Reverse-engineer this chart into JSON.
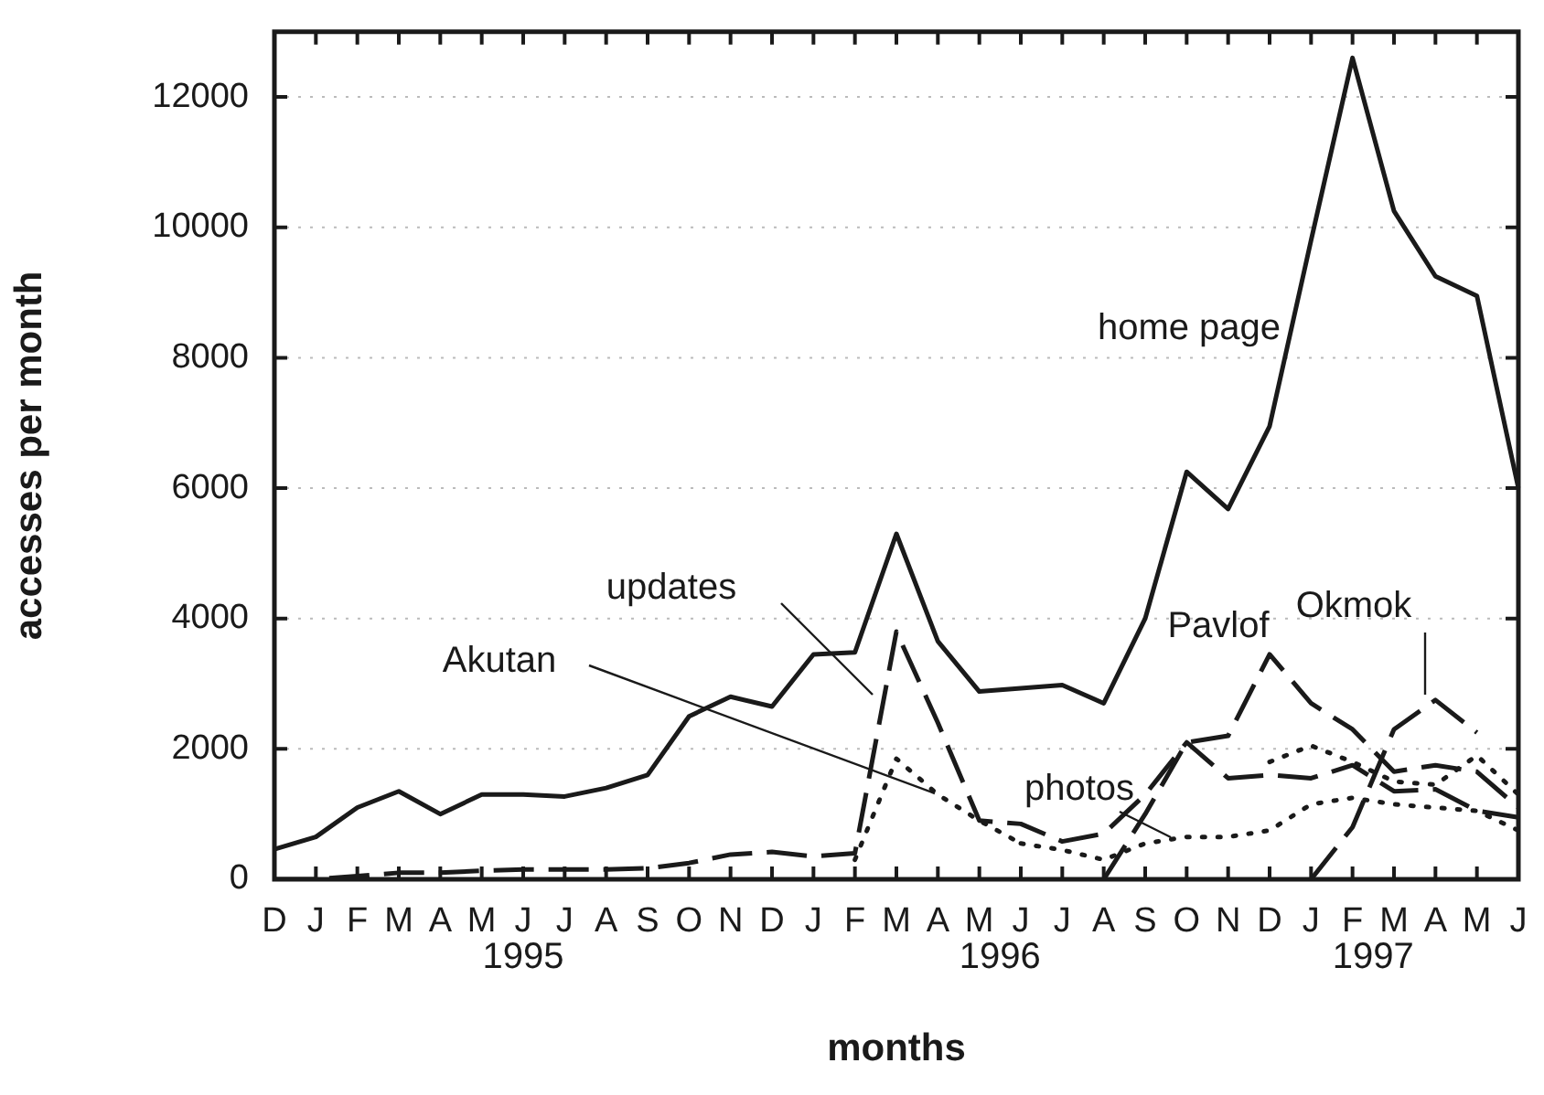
{
  "chart_data": {
    "type": "line",
    "xlabel": "months",
    "ylabel": "accesses per month",
    "categories": [
      "D",
      "J",
      "F",
      "M",
      "A",
      "M",
      "J",
      "J",
      "A",
      "S",
      "O",
      "N",
      "D",
      "J",
      "F",
      "M",
      "A",
      "M",
      "J",
      "J",
      "A",
      "S",
      "O",
      "N",
      "D",
      "J",
      "F",
      "M",
      "A",
      "M",
      "J"
    ],
    "ylim": [
      0,
      13000
    ],
    "yticks": [
      0,
      2000,
      4000,
      6000,
      8000,
      10000,
      12000
    ],
    "grid": "y",
    "legend": false,
    "series": [
      {
        "name": "home page",
        "color": "#1a1a1a",
        "line_style": "solid",
        "values": [
          460,
          650,
          1100,
          1350,
          1000,
          1300,
          1300,
          1270,
          1400,
          1600,
          2500,
          2800,
          2650,
          3450,
          3480,
          5300,
          3650,
          2880,
          2930,
          2980,
          2700,
          4000,
          6250,
          5680,
          6950,
          9800,
          12600,
          10250,
          9250,
          8950,
          6000
        ]
      },
      {
        "name": "updates",
        "color": "#1a1a1a",
        "line_style": "dashed",
        "values": [
          0,
          0,
          50,
          100,
          100,
          130,
          150,
          150,
          150,
          170,
          250,
          380,
          420,
          350,
          400,
          3800,
          2400,
          900,
          850,
          580,
          700,
          1300,
          2100,
          1550,
          1600,
          1550,
          1750,
          1350,
          1380,
          1050,
          950
        ]
      },
      {
        "name": "Akutan",
        "color": "#1a1a1a",
        "line_style": "dotted",
        "values": [
          null,
          null,
          null,
          null,
          null,
          null,
          null,
          null,
          null,
          null,
          null,
          null,
          null,
          null,
          300,
          1850,
          1300,
          900,
          550,
          null,
          null,
          null,
          null,
          null,
          1800,
          2050,
          1800,
          1500,
          1450,
          1900,
          1300
        ]
      },
      {
        "name": "photos",
        "color": "#1a1a1a",
        "line_style": "dotted",
        "values": [
          null,
          null,
          null,
          null,
          null,
          null,
          null,
          null,
          null,
          null,
          null,
          null,
          null,
          null,
          null,
          null,
          null,
          null,
          550,
          450,
          300,
          550,
          650,
          650,
          750,
          1150,
          1250,
          1150,
          1100,
          1050,
          750
        ]
      },
      {
        "name": "Pavlof",
        "color": "#1a1a1a",
        "line_style": "dashed",
        "values": [
          null,
          null,
          null,
          null,
          null,
          null,
          null,
          null,
          null,
          null,
          null,
          null,
          null,
          null,
          null,
          null,
          null,
          null,
          null,
          null,
          0,
          1000,
          2100,
          2200,
          3450,
          2700,
          2300,
          1650,
          1750,
          1650,
          1100
        ]
      },
      {
        "name": "Okmok",
        "color": "#1a1a1a",
        "line_style": "dashed",
        "values": [
          null,
          null,
          null,
          null,
          null,
          null,
          null,
          null,
          null,
          null,
          null,
          null,
          null,
          null,
          null,
          null,
          null,
          null,
          null,
          null,
          null,
          null,
          null,
          null,
          null,
          0,
          800,
          2300,
          2750,
          2250,
          null
        ]
      }
    ],
    "annotations": [
      "1995",
      "1996",
      "1997"
    ]
  }
}
